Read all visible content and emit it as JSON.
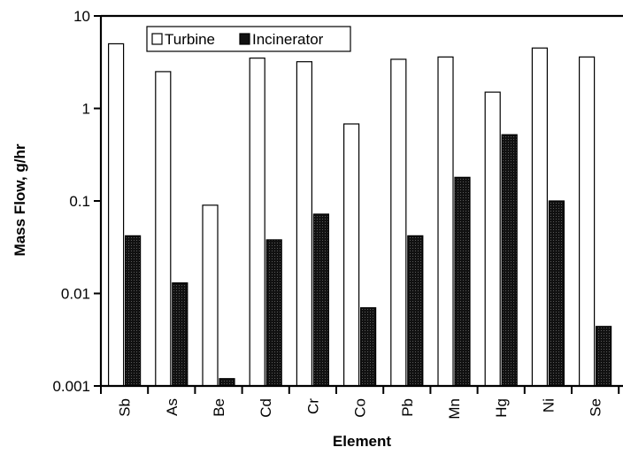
{
  "chart_data": {
    "type": "bar",
    "title": "",
    "xlabel": "Element",
    "ylabel": "Mass Flow, g/hr",
    "y_scale": "log",
    "ylim": [
      0.001,
      10
    ],
    "y_ticks": [
      "0.001",
      "0.01",
      "0.1",
      "1",
      "10"
    ],
    "grid": false,
    "legend_position": "top-left",
    "categories": [
      "Sb",
      "As",
      "Be",
      "Cd",
      "Cr",
      "Co",
      "Pb",
      "Mn",
      "Hg",
      "Ni",
      "Se"
    ],
    "series": [
      {
        "name": "Turbine",
        "color": "#ffffff",
        "values": [
          5.0,
          2.5,
          0.09,
          3.5,
          3.2,
          0.68,
          3.4,
          3.6,
          1.5,
          4.5,
          3.6
        ]
      },
      {
        "name": "Incinerator",
        "color": "#1a1a1a",
        "values": [
          0.042,
          0.013,
          0.0012,
          0.038,
          0.072,
          0.007,
          0.042,
          0.18,
          0.52,
          0.1,
          0.0044
        ]
      }
    ]
  }
}
